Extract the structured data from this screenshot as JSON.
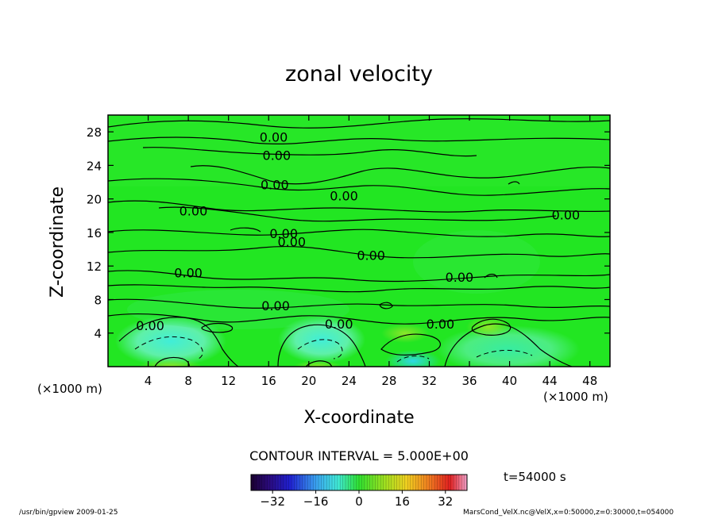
{
  "chart_data": {
    "type": "heatmap",
    "title": "zonal velocity",
    "xlabel": "X-coordinate",
    "ylabel": "Z-coordinate",
    "x_unit_label": "(×1000 m)",
    "y_unit_label": "(×1000 m)",
    "xlim": [
      0,
      50
    ],
    "ylim": [
      0,
      30
    ],
    "x_ticks": [
      4,
      8,
      12,
      16,
      20,
      24,
      28,
      32,
      36,
      40,
      44,
      48
    ],
    "y_ticks": [
      4,
      8,
      12,
      16,
      20,
      24,
      28
    ],
    "contour_interval_text": "CONTOUR INTERVAL = 5.000E+00",
    "contour_labels": [
      {
        "x": 16.5,
        "y": 27.4,
        "text": "0.00"
      },
      {
        "x": 16.8,
        "y": 25.2,
        "text": "0.00"
      },
      {
        "x": 16.6,
        "y": 21.7,
        "text": "0.00"
      },
      {
        "x": 23.5,
        "y": 20.4,
        "text": "0.00"
      },
      {
        "x": 8.5,
        "y": 18.6,
        "text": "0.00"
      },
      {
        "x": 45.6,
        "y": 18.1,
        "text": "0.00"
      },
      {
        "x": 17.5,
        "y": 15.9,
        "text": "0.00"
      },
      {
        "x": 18.3,
        "y": 14.9,
        "text": "0.00"
      },
      {
        "x": 26.2,
        "y": 13.3,
        "text": "0.00"
      },
      {
        "x": 8.0,
        "y": 11.2,
        "text": "0.00"
      },
      {
        "x": 35.0,
        "y": 10.7,
        "text": "0.00"
      },
      {
        "x": 16.7,
        "y": 7.3,
        "text": "0.00"
      },
      {
        "x": 4.2,
        "y": 4.9,
        "text": "0.00"
      },
      {
        "x": 23.0,
        "y": 5.1,
        "text": "0.00"
      },
      {
        "x": 33.1,
        "y": 5.1,
        "text": "0.00"
      }
    ],
    "colorbar": {
      "ticks": [
        -32,
        -16,
        0,
        16,
        32
      ],
      "tick_labels": [
        "−32",
        "−16",
        "0",
        "16",
        "32"
      ],
      "range": [
        -40,
        40
      ]
    },
    "colors": {
      "field_base": "#22e622",
      "negative_tint": "#5ff0a8",
      "strong_negative": "#36e6e0"
    }
  },
  "annotations": {
    "time": "t=54000 s",
    "footer_left": "/usr/bin/gpview   2009-01-25",
    "footer_right": "MarsCond_VelX.nc@VelX,x=0:50000,z=0:30000,t=054000"
  }
}
